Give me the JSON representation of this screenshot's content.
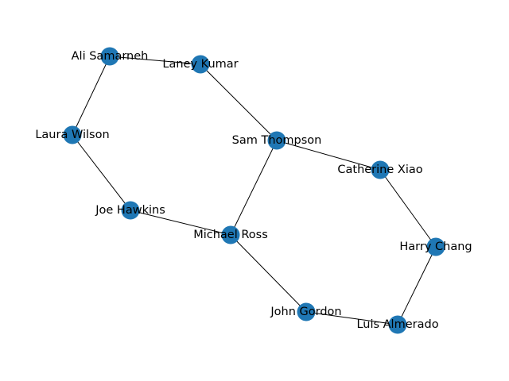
{
  "graph": {
    "node_color": "#1f77b4",
    "edge_color": "#000000",
    "nodes": [
      {
        "id": "ali",
        "label": "Ali Samarneh"
      },
      {
        "id": "laney",
        "label": "Laney Kumar"
      },
      {
        "id": "laura",
        "label": "Laura Wilson"
      },
      {
        "id": "sam",
        "label": "Sam Thompson"
      },
      {
        "id": "catherine",
        "label": "Catherine Xiao"
      },
      {
        "id": "joe",
        "label": "Joe Hawkins"
      },
      {
        "id": "michael",
        "label": "Michael Ross"
      },
      {
        "id": "harry",
        "label": "Harry Chang"
      },
      {
        "id": "john",
        "label": "John Gordon"
      },
      {
        "id": "luis",
        "label": "Luis Almerado"
      }
    ],
    "edges": [
      {
        "source": "ali",
        "target": "laney"
      },
      {
        "source": "ali",
        "target": "laura"
      },
      {
        "source": "laney",
        "target": "sam"
      },
      {
        "source": "laura",
        "target": "joe"
      },
      {
        "source": "sam",
        "target": "catherine"
      },
      {
        "source": "sam",
        "target": "michael"
      },
      {
        "source": "joe",
        "target": "michael"
      },
      {
        "source": "catherine",
        "target": "harry"
      },
      {
        "source": "michael",
        "target": "john"
      },
      {
        "source": "harry",
        "target": "luis"
      },
      {
        "source": "john",
        "target": "luis"
      }
    ]
  }
}
